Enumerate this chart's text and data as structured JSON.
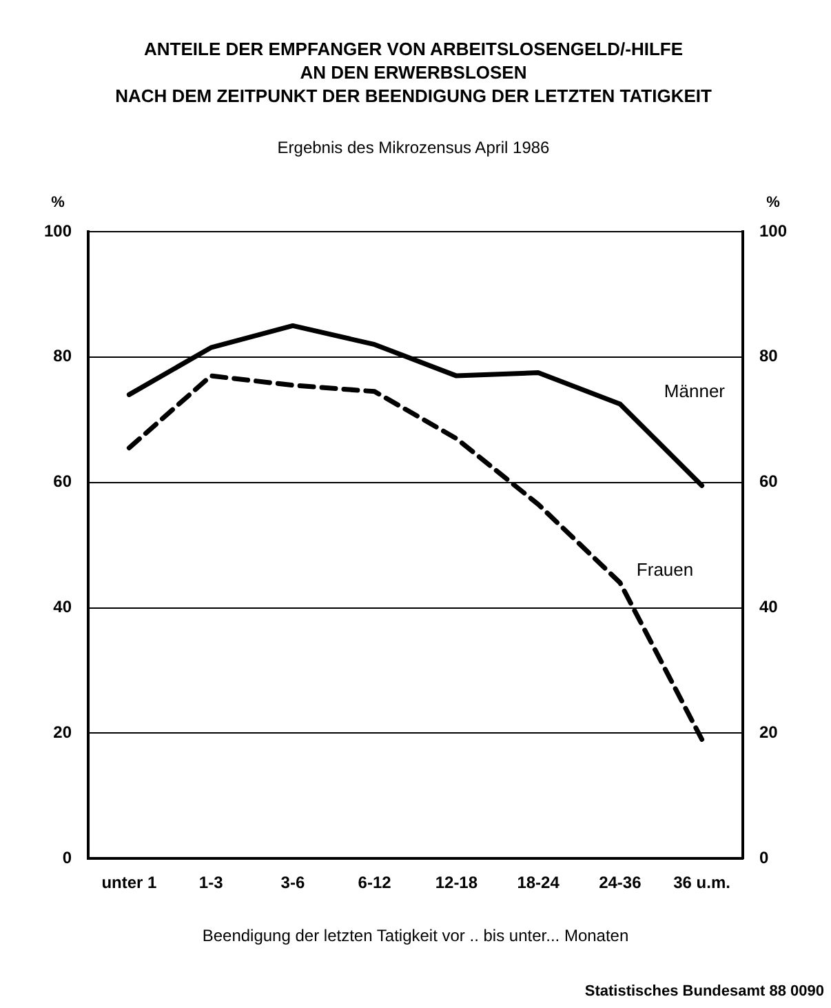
{
  "chart_data": {
    "type": "line",
    "title": "ANTEILE DER EMPFANGER VON ARBEITSLOSENGELD/-HILFE\nAN DEN ERWERBSLOSEN\nNACH DEM ZEITPUNKT DER BEENDIGUNG DER LETZTEN TATIGKEIT",
    "subtitle": "Ergebnis des Mikrozensus April 1986",
    "xlabel": "Beendigung der letzten Tatigkeit vor .. bis unter... Monaten",
    "ylabel": "%",
    "y2label": "%",
    "categories": [
      "unter 1",
      "1-3",
      "3-6",
      "6-12",
      "12-18",
      "18-24",
      "24-36",
      "36 u.m."
    ],
    "series": [
      {
        "name": "Männer",
        "color": "#000000",
        "line_style": "solid",
        "values": [
          74,
          81.5,
          85,
          82,
          77,
          77.5,
          72.5,
          59.5
        ]
      },
      {
        "name": "Frauen",
        "color": "#000000",
        "line_style": "dashed",
        "values": [
          65.5,
          77,
          75.5,
          74.5,
          67,
          56.5,
          44,
          19
        ]
      }
    ],
    "ylim": [
      0,
      100
    ],
    "yticks": [
      0,
      20,
      40,
      60,
      80,
      100
    ],
    "y2lim": [
      0,
      100
    ],
    "y2ticks": [
      0,
      20,
      40,
      60,
      80,
      100
    ],
    "grid": "y",
    "legend": false,
    "marker": "none",
    "annotations": [
      "Statistisches Bundesamt 88 0090"
    ]
  }
}
